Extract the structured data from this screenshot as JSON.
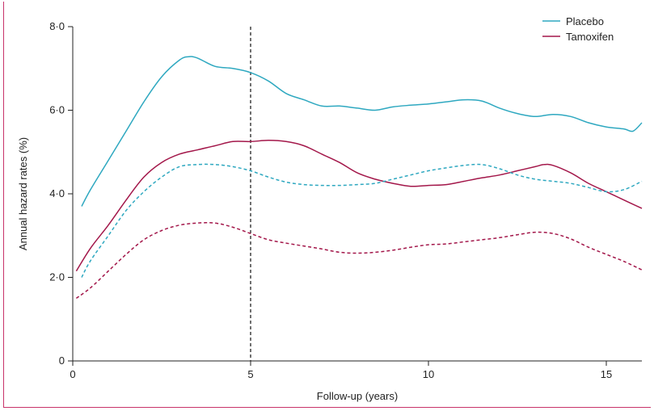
{
  "chart_data": {
    "type": "line",
    "title": "",
    "xlabel": "Follow-up (years)",
    "ylabel": "Annual hazard rates (%)",
    "xlim": [
      0,
      16
    ],
    "ylim": [
      0,
      8
    ],
    "x_ticks": [
      0,
      5,
      10,
      15
    ],
    "x_tick_labels": [
      "0",
      "5",
      "10",
      "15"
    ],
    "y_ticks": [
      0,
      2,
      4,
      6,
      8
    ],
    "y_tick_labels": [
      "0",
      "2·0",
      "4·0",
      "6·0",
      "8·0"
    ],
    "grid": false,
    "legend_position": "top-right",
    "reference_line_x": 5,
    "legend": [
      {
        "label": "Placebo",
        "color": "#2ea8c0"
      },
      {
        "label": "Tamoxifen",
        "color": "#a3174a"
      }
    ],
    "series": [
      {
        "group": "Placebo",
        "style": "solid",
        "color": "#2ea8c0",
        "x": [
          0.25,
          0.5,
          1.0,
          1.5,
          2.0,
          2.5,
          3.0,
          3.25,
          3.5,
          4.0,
          4.5,
          5.0,
          5.5,
          6.0,
          6.5,
          7.0,
          7.5,
          8.0,
          8.5,
          9.0,
          9.5,
          10.0,
          10.5,
          11.0,
          11.5,
          12.0,
          12.5,
          13.0,
          13.5,
          14.0,
          14.5,
          15.0,
          15.5,
          15.75,
          16.0
        ],
        "y": [
          3.7,
          4.1,
          4.8,
          5.5,
          6.2,
          6.8,
          7.2,
          7.28,
          7.25,
          7.05,
          7.0,
          6.9,
          6.7,
          6.4,
          6.25,
          6.1,
          6.1,
          6.05,
          6.0,
          6.08,
          6.12,
          6.15,
          6.2,
          6.25,
          6.22,
          6.05,
          5.92,
          5.85,
          5.9,
          5.85,
          5.7,
          5.6,
          5.55,
          5.5,
          5.7
        ]
      },
      {
        "group": "Tamoxifen",
        "style": "solid",
        "color": "#a3174a",
        "x": [
          0.1,
          0.5,
          1.0,
          1.5,
          2.0,
          2.5,
          3.0,
          3.5,
          4.0,
          4.5,
          5.0,
          5.5,
          6.0,
          6.5,
          7.0,
          7.5,
          8.0,
          8.5,
          9.0,
          9.5,
          10.0,
          10.5,
          11.0,
          11.5,
          12.0,
          12.5,
          13.0,
          13.25,
          13.5,
          14.0,
          14.5,
          15.0,
          15.5,
          16.0
        ],
        "y": [
          2.15,
          2.7,
          3.25,
          3.85,
          4.4,
          4.75,
          4.95,
          5.05,
          5.15,
          5.25,
          5.25,
          5.28,
          5.25,
          5.15,
          4.95,
          4.75,
          4.5,
          4.35,
          4.25,
          4.18,
          4.2,
          4.22,
          4.3,
          4.38,
          4.45,
          4.55,
          4.65,
          4.7,
          4.68,
          4.5,
          4.25,
          4.05,
          3.85,
          3.65
        ]
      },
      {
        "group": "Placebo",
        "style": "dashed",
        "color": "#2ea8c0",
        "x": [
          0.25,
          0.5,
          1.0,
          1.5,
          2.0,
          2.5,
          3.0,
          3.5,
          4.0,
          4.5,
          5.0,
          5.5,
          6.0,
          6.5,
          7.0,
          7.5,
          8.0,
          8.5,
          9.0,
          9.5,
          10.0,
          10.5,
          11.0,
          11.5,
          12.0,
          12.5,
          13.0,
          13.5,
          14.0,
          14.5,
          15.0,
          15.5,
          16.0
        ],
        "y": [
          2.0,
          2.4,
          3.0,
          3.6,
          4.05,
          4.4,
          4.65,
          4.7,
          4.7,
          4.65,
          4.55,
          4.4,
          4.28,
          4.22,
          4.2,
          4.2,
          4.22,
          4.25,
          4.35,
          4.45,
          4.55,
          4.62,
          4.68,
          4.7,
          4.6,
          4.45,
          4.35,
          4.3,
          4.25,
          4.15,
          4.05,
          4.1,
          4.3
        ]
      },
      {
        "group": "Tamoxifen",
        "style": "dashed",
        "color": "#a3174a",
        "x": [
          0.1,
          0.5,
          1.0,
          1.5,
          2.0,
          2.5,
          3.0,
          3.5,
          4.0,
          4.5,
          5.0,
          5.5,
          6.0,
          6.5,
          7.0,
          7.5,
          8.0,
          8.5,
          9.0,
          9.5,
          10.0,
          10.5,
          11.0,
          11.5,
          12.0,
          12.5,
          13.0,
          13.5,
          14.0,
          14.5,
          15.0,
          15.5,
          16.0
        ],
        "y": [
          1.5,
          1.75,
          2.15,
          2.55,
          2.9,
          3.12,
          3.25,
          3.3,
          3.3,
          3.2,
          3.05,
          2.9,
          2.82,
          2.75,
          2.68,
          2.6,
          2.58,
          2.6,
          2.65,
          2.72,
          2.78,
          2.8,
          2.85,
          2.9,
          2.95,
          3.02,
          3.08,
          3.05,
          2.92,
          2.72,
          2.55,
          2.38,
          2.18
        ]
      }
    ]
  }
}
